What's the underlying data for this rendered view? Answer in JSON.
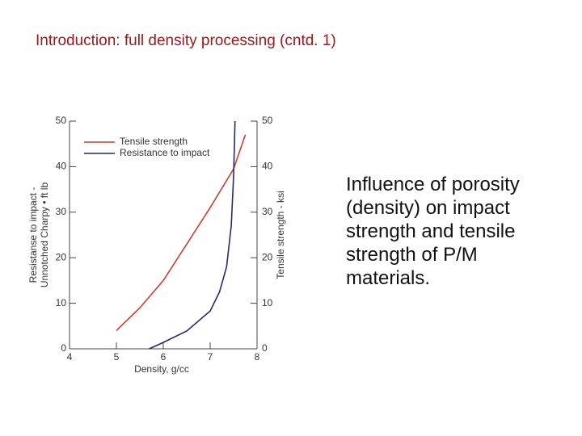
{
  "title": "Introduction: full density processing (cntd. 1)",
  "caption": "Influence of porosity (density) on impact strength and tensile strength of P/M materials.",
  "chart_data": {
    "type": "line",
    "xlabel": "Density, g/cc",
    "ylabel": [
      "Resistanse to impact -",
      "Unnotched Charpy • ft lb"
    ],
    "y2label": "Tensile strength - ksi",
    "xlim": [
      4,
      8
    ],
    "xticks": [
      4,
      5,
      6,
      7,
      8
    ],
    "ylim": [
      0,
      50
    ],
    "yticks": [
      0,
      10,
      20,
      30,
      40,
      50
    ],
    "y2lim": [
      0,
      50
    ],
    "y2ticks": [
      0,
      10,
      20,
      30,
      40,
      50
    ],
    "legend": "upper left",
    "series": [
      {
        "name": "Tensile strength",
        "color": "#d03a2e",
        "axis": "y2",
        "x": [
          5,
          5.5,
          6,
          6.5,
          7,
          7.5,
          7.75
        ],
        "values": [
          4,
          9,
          15,
          23,
          31,
          39.5,
          47
        ]
      },
      {
        "name": "Resistance to impact",
        "color": "#28286e",
        "axis": "y",
        "x": [
          5.7,
          6,
          6.5,
          7,
          7.2,
          7.35,
          7.45,
          7.5,
          7.53
        ],
        "values": [
          0,
          1.4,
          3.9,
          8.3,
          12.5,
          18,
          27,
          38,
          50
        ]
      }
    ]
  }
}
